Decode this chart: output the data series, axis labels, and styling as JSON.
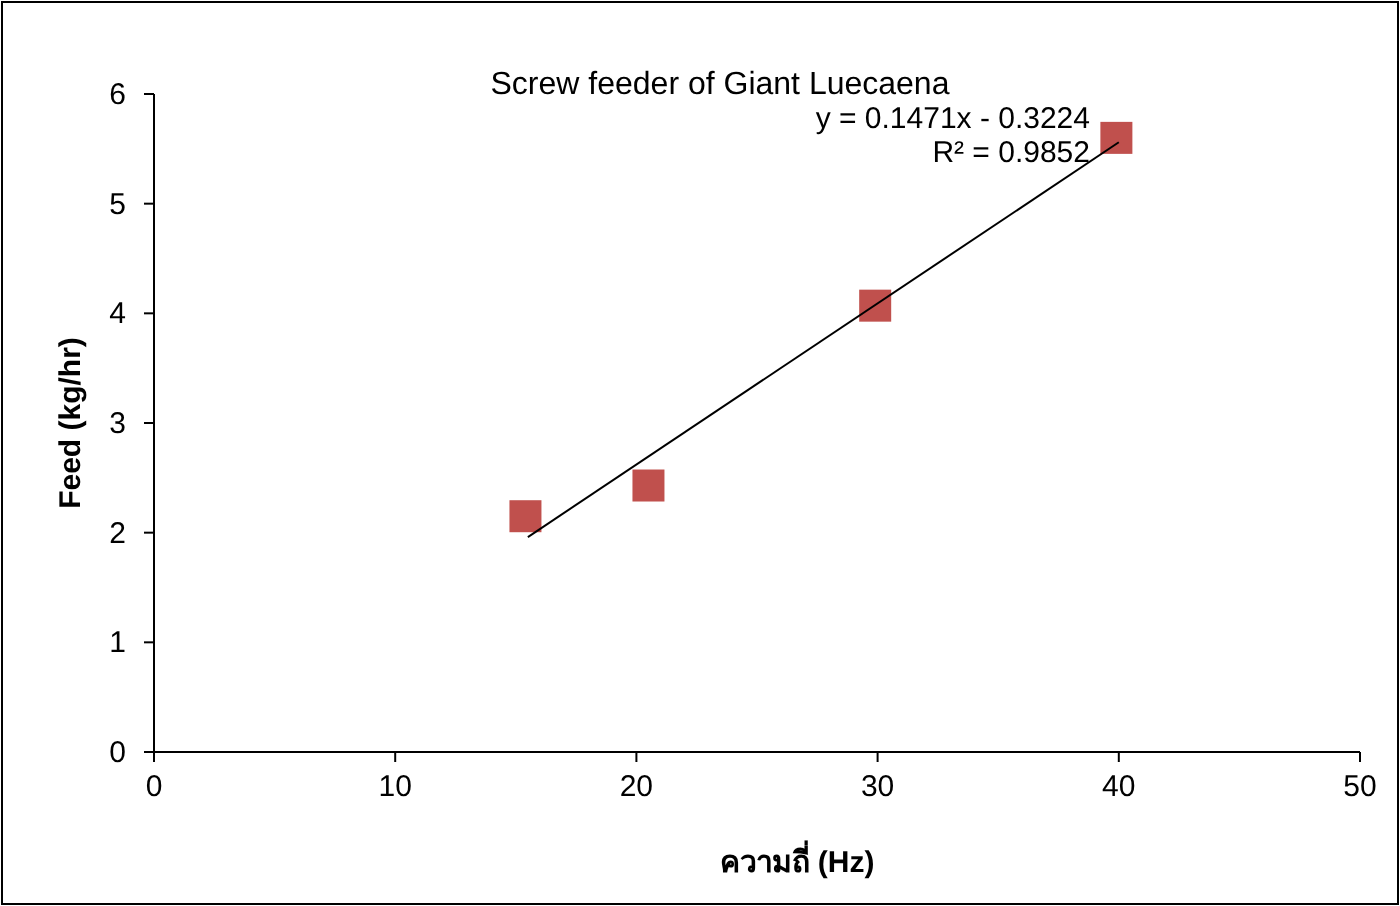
{
  "chart_data": {
    "type": "scatter",
    "title": "Screw feeder of Giant Luecaena",
    "xlabel": "ความถี่ (Hz)",
    "ylabel": "Feed (kg/hr)",
    "annotations": [
      "y = 0.1471x - 0.3224",
      "R² = 0.9852"
    ],
    "xlim": [
      0,
      50
    ],
    "ylim": [
      0,
      6
    ],
    "xticks": [
      0,
      10,
      20,
      30,
      40,
      50
    ],
    "yticks": [
      0,
      1,
      2,
      3,
      4,
      5,
      6
    ],
    "grid": false,
    "marker": "square",
    "series": [
      {
        "color": "#c0504d",
        "x": [
          15.4,
          20.5,
          29.9,
          39.9
        ],
        "values": [
          2.15,
          2.43,
          4.07,
          5.6
        ]
      },
      {
        "type": "line",
        "color": "#000000",
        "marker": "none",
        "line_style": "solid",
        "x": [
          15.5,
          40
        ],
        "values": [
          1.96,
          5.56
        ]
      }
    ]
  }
}
